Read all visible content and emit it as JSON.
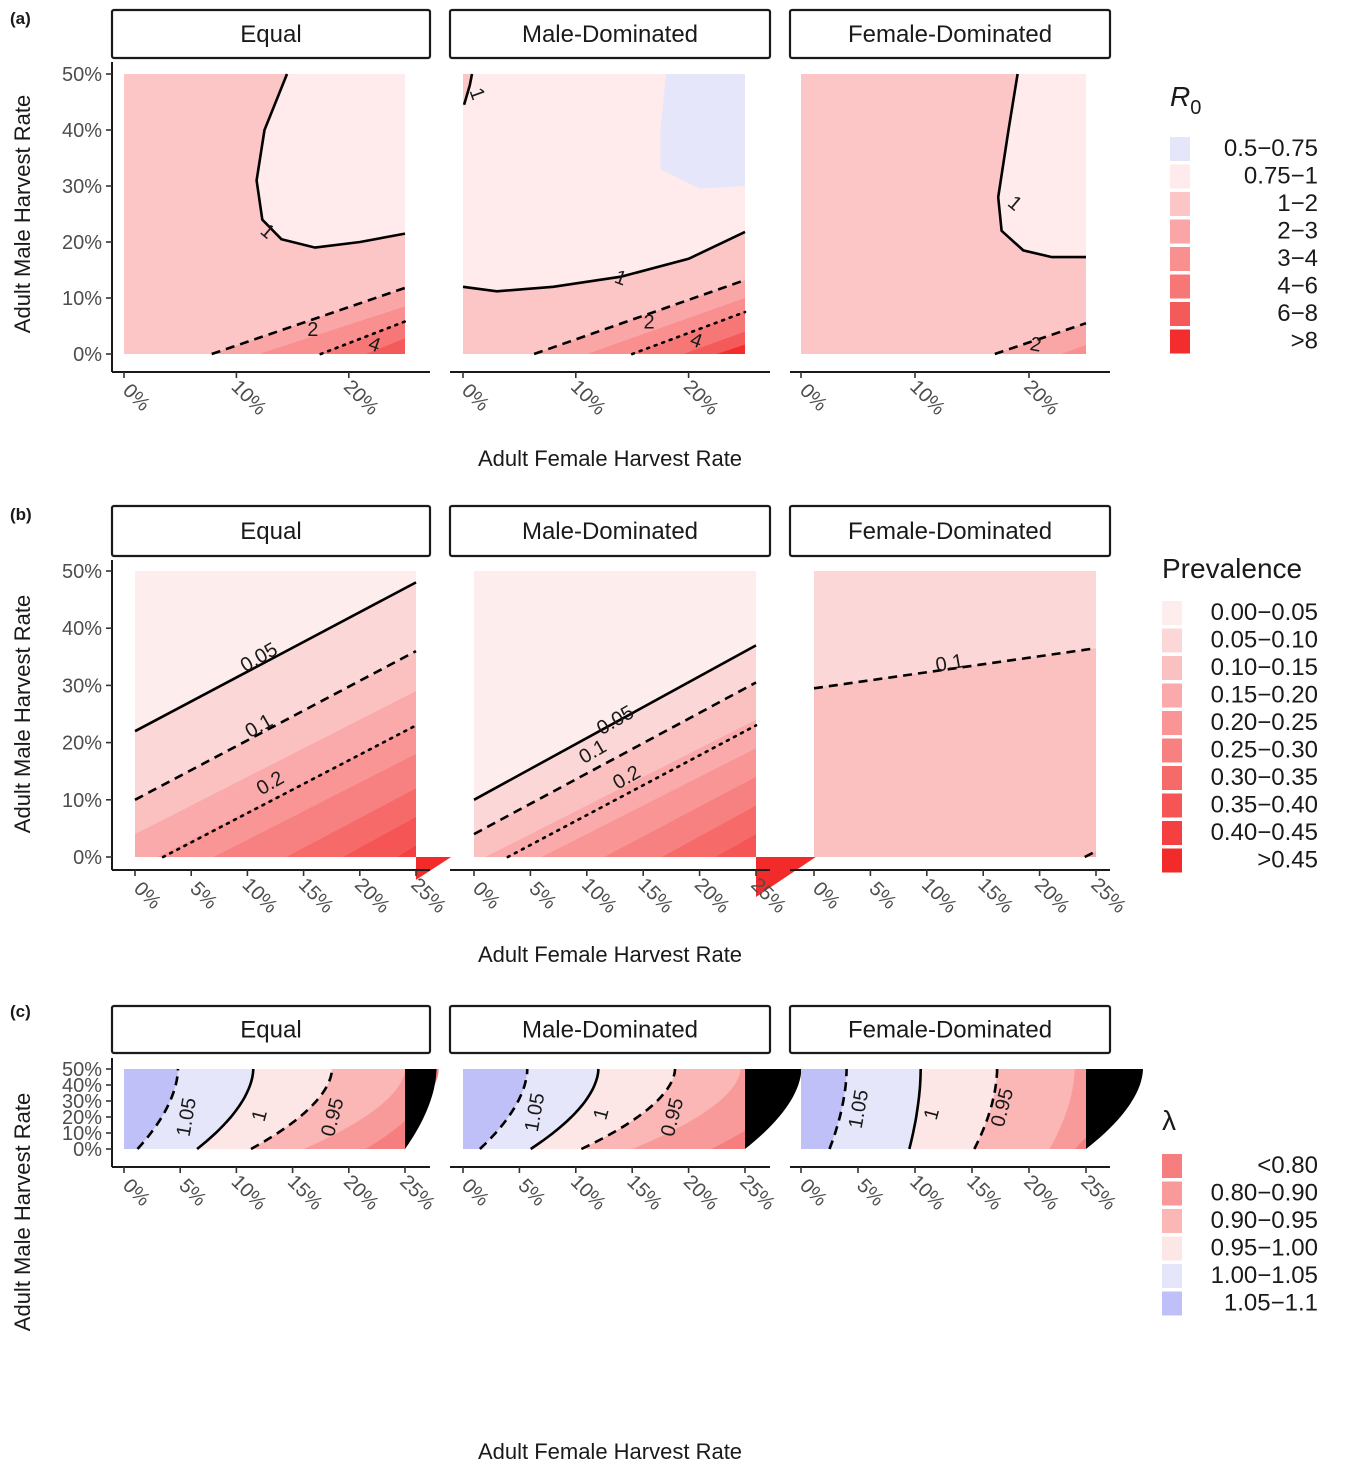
{
  "chart_data": [
    {
      "type": "contour",
      "panel_tag": "(a)",
      "facets": [
        "Equal",
        "Male-Dominated",
        "Female-Dominated"
      ],
      "xlabel": "Adult Female Harvest Rate",
      "ylabel": "Adult Male Harvest Rate",
      "xlim": [
        0,
        25
      ],
      "ylim": [
        0,
        50
      ],
      "xticks": [
        "0%",
        "10%",
        "20%"
      ],
      "yticks": [
        "0%",
        "10%",
        "20%",
        "30%",
        "40%",
        "50%"
      ],
      "legend": {
        "title_main": "R",
        "title_sub": "0",
        "position": "right",
        "entries": [
          "0.5−0.75",
          "0.75−1",
          "1−2",
          "2−3",
          "3−4",
          "4−6",
          "6−8",
          ">8"
        ],
        "colors": [
          "#e6e6fa",
          "#ffebeb",
          "#fcc6c6",
          "#fba6a6",
          "#f98f8f",
          "#f77777",
          "#f55a5a",
          "#f32d2d"
        ]
      },
      "contour_labels": [
        [
          "1",
          "2",
          "4"
        ],
        [
          "1",
          "1",
          "2",
          "4"
        ],
        [
          "1",
          "2"
        ]
      ]
    },
    {
      "type": "contour",
      "panel_tag": "(b)",
      "facets": [
        "Equal",
        "Male-Dominated",
        "Female-Dominated"
      ],
      "xlabel": "Adult Female Harvest Rate",
      "ylabel": "Adult Male Harvest Rate",
      "xlim": [
        0,
        25
      ],
      "ylim": [
        0,
        50
      ],
      "xticks": [
        "0%",
        "5%",
        "10%",
        "15%",
        "20%",
        "25%"
      ],
      "yticks": [
        "0%",
        "10%",
        "20%",
        "30%",
        "40%",
        "50%"
      ],
      "legend": {
        "title_main": "Prevalence",
        "position": "right",
        "entries": [
          "0.00−0.05",
          "0.05−0.10",
          "0.10−0.15",
          "0.15−0.20",
          "0.20−0.25",
          "0.25−0.30",
          "0.30−0.35",
          "0.35−0.40",
          "0.40−0.45",
          ">0.45"
        ],
        "colors": [
          "#fdeded",
          "#fcd7d7",
          "#fbc1c1",
          "#faaaaa",
          "#f99595",
          "#f78080",
          "#f66a6a",
          "#f55555",
          "#f44040",
          "#f32a2a"
        ]
      },
      "contour_labels": [
        [
          "0.05",
          "0.1",
          "0.2"
        ],
        [
          "0.05",
          "0.1",
          "0.2"
        ],
        [
          "0.1"
        ]
      ]
    },
    {
      "type": "contour",
      "panel_tag": "(c)",
      "facets": [
        "Equal",
        "Male-Dominated",
        "Female-Dominated"
      ],
      "xlabel": "Adult Female Harvest Rate",
      "ylabel": "Adult Male Harvest Rate",
      "xlim": [
        0,
        25
      ],
      "ylim": [
        0,
        50
      ],
      "xticks": [
        "0%",
        "5%",
        "10%",
        "15%",
        "20%",
        "25%"
      ],
      "yticks": [
        "0%",
        "10%",
        "20%",
        "30%",
        "40%",
        "50%"
      ],
      "legend": {
        "title_main": "λ",
        "position": "right",
        "entries": [
          "<0.80",
          "0.80−0.90",
          "0.90−0.95",
          "0.95−1.00",
          "1.00−1.05",
          "1.05−1.1"
        ],
        "colors": [
          "#f77e7e",
          "#f99a9a",
          "#fbb6b6",
          "#fde6e6",
          "#e6e6fa",
          "#c0c0f8"
        ]
      },
      "contour_labels": [
        [
          "1.05",
          "1",
          "0.95"
        ],
        [
          "1.05",
          "1",
          "0.95"
        ],
        [
          "1.05",
          "1",
          "0.95"
        ]
      ]
    }
  ]
}
